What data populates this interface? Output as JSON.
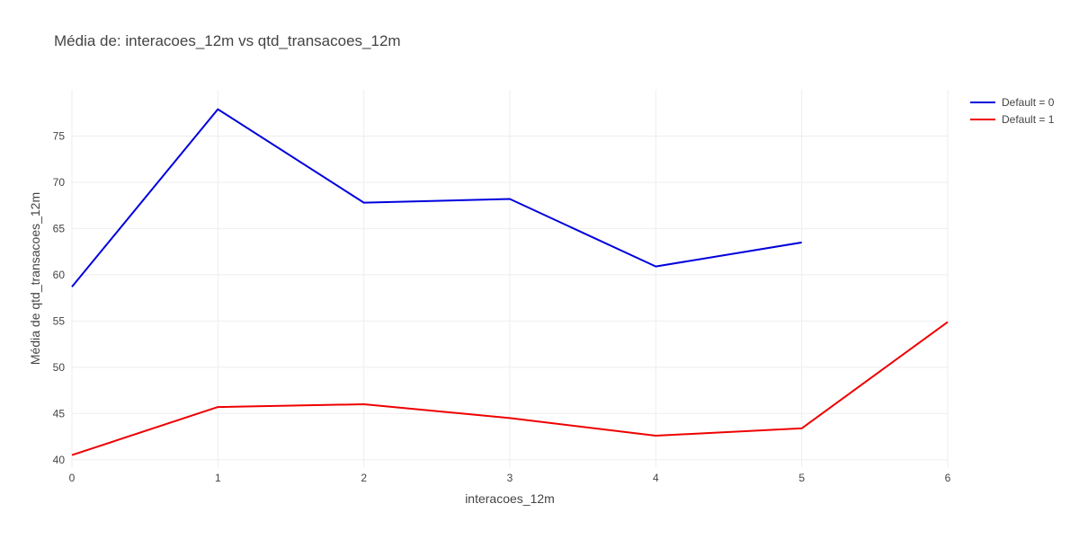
{
  "chart_data": {
    "type": "line",
    "title": "Média de: interacoes_12m vs qtd_transacoes_12m",
    "xlabel": "interacoes_12m",
    "ylabel": "Média de qtd_transacoes_12m",
    "xlim": [
      0,
      6
    ],
    "ylim": [
      39.2,
      80.0
    ],
    "xticks": [
      0,
      1,
      2,
      3,
      4,
      5,
      6
    ],
    "yticks": [
      40,
      45,
      50,
      55,
      60,
      65,
      70,
      75
    ],
    "grid": true,
    "legend_position": "top-right",
    "series": [
      {
        "name": "Default = 0",
        "color": "#0000dd",
        "x": [
          0,
          1,
          2,
          3,
          4,
          5
        ],
        "values": [
          58.7,
          77.9,
          67.8,
          68.2,
          60.9,
          63.5
        ]
      },
      {
        "name": "Default = 1",
        "color": "#ee0000",
        "x": [
          0,
          1,
          2,
          3,
          4,
          5,
          6
        ],
        "values": [
          40.5,
          45.7,
          46.0,
          44.5,
          42.6,
          43.4,
          54.9
        ]
      }
    ]
  }
}
